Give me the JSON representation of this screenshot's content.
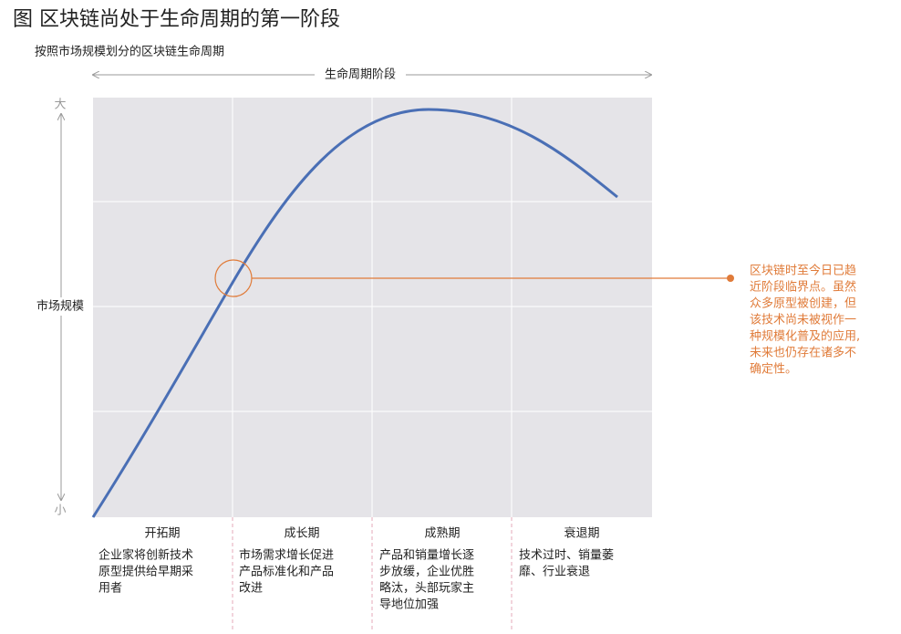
{
  "header": {
    "title": "图 区块链尚处于生命周期的第一阶段",
    "subtitle": "按照市场规模划分的区块链生命周期"
  },
  "axes": {
    "x_label": "生命周期阶段",
    "y_label": "市场规模",
    "y_high": "大",
    "y_low": "小"
  },
  "annotation": {
    "lines": [
      "区块链时至今日已趋",
      "近阶段临界点。虽然",
      "众多原型被创建，但",
      "该技术尚未被视作一",
      "种规模化普及的应用,",
      "未来也仍存在诸多不",
      "确定性。"
    ]
  },
  "phases": [
    {
      "name": "开拓期",
      "lines": [
        "企业家将创新技术",
        "原型提供给早期采",
        "用者"
      ]
    },
    {
      "name": "成长期",
      "lines": [
        "市场需求增长促进",
        "产品标准化和产品",
        "改进"
      ]
    },
    {
      "name": "成熟期",
      "lines": [
        "产品和销量增长逐",
        "步放缓，企业优胜",
        "略汰，头部玩家主",
        "导地位加强"
      ]
    },
    {
      "name": "衰退期",
      "lines": [
        "技术过时、销量萎",
        "靡、行业衰退"
      ]
    }
  ]
}
